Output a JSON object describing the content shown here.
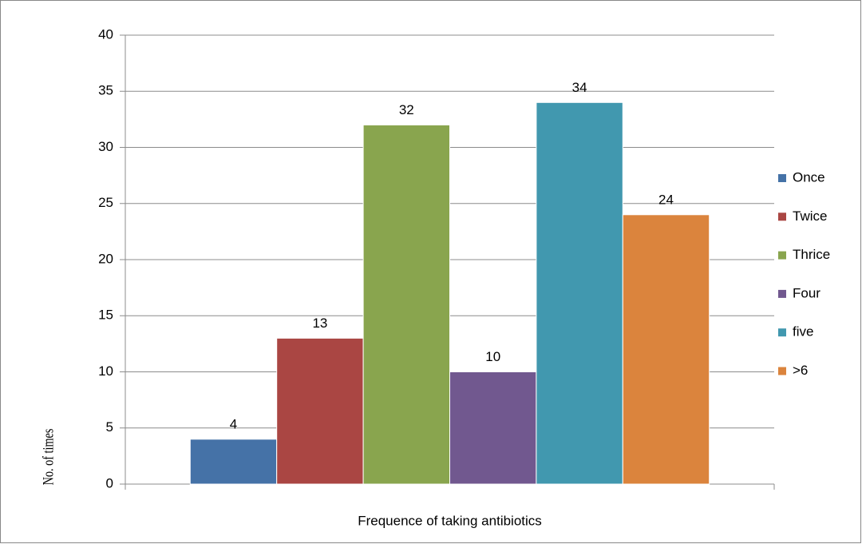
{
  "chart_data": {
    "type": "bar",
    "categories": [
      "Frequence of taking antibiotics"
    ],
    "y_label": "No. of times",
    "series": [
      {
        "name": "Once",
        "color": "#4572a7",
        "values": [
          4
        ]
      },
      {
        "name": "Twice",
        "color": "#aa4643",
        "values": [
          13
        ]
      },
      {
        "name": "Thrice",
        "color": "#89a54e",
        "values": [
          32
        ]
      },
      {
        "name": "Four",
        "color": "#71588f",
        "values": [
          10
        ]
      },
      {
        "name": "five",
        "color": "#4198af",
        "values": [
          34
        ]
      },
      {
        "name": ">6",
        "color": "#db843d",
        "values": [
          24
        ]
      }
    ],
    "ylim": [
      0,
      40
    ],
    "yticks": [
      0,
      5,
      10,
      15,
      20,
      25,
      30,
      35,
      40
    ],
    "grid": true,
    "legend": "right"
  }
}
